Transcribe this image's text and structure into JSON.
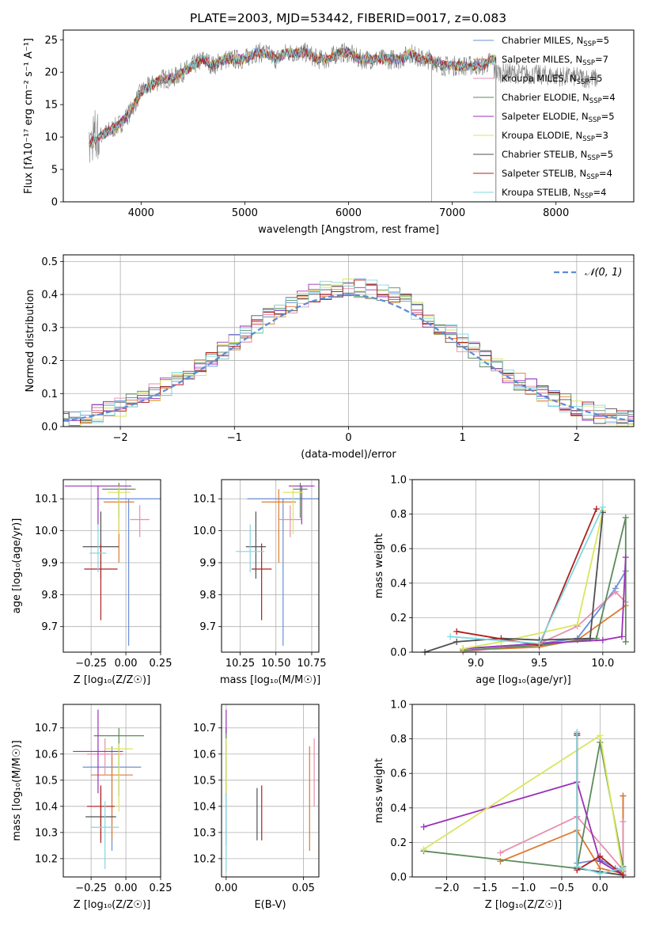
{
  "title": "PLATE=2003, MJD=53442, FIBERID=0017, z=0.083",
  "model_colors": [
    "#6a8fd9",
    "#e07a2f",
    "#e58fb0",
    "#5c8a5c",
    "#9b30b8",
    "#d9e65c",
    "#505050",
    "#b02020",
    "#80d8e0"
  ],
  "chart_data": [
    {
      "panel": "spectrum",
      "type": "line",
      "title": "PLATE=2003, MJD=53442, FIBERID=0017, z=0.083",
      "xlabel": "wavelength [Angstrom, rest frame]",
      "ylabel": "Flux [fλ10⁻¹⁷ erg cm⁻² s⁻¹ A⁻¹]",
      "xlim": [
        3250,
        8750
      ],
      "ylim": [
        0,
        26.5
      ],
      "xticks": [
        "4000",
        "5000",
        "6000",
        "7000",
        "8000"
      ],
      "yticks": [
        "0",
        "5",
        "10",
        "15",
        "20",
        "25"
      ],
      "grid": false,
      "legend": "right",
      "data_series": {
        "x": [
          3500,
          3600,
          3700,
          3800,
          3900,
          4000,
          4100,
          4200,
          4300,
          4400,
          4500,
          4600,
          4700,
          4800,
          4900,
          5000,
          5100,
          5200,
          5300,
          5400,
          5500,
          5600,
          5700,
          5800,
          5900,
          6000,
          6100,
          6200,
          6300,
          6400,
          6500,
          6600,
          6700,
          6800,
          6900,
          7000,
          7100,
          7200,
          7300,
          7400
        ],
        "y": [
          9,
          10,
          11,
          12,
          14,
          17,
          18,
          19,
          19,
          20,
          21,
          22,
          21,
          22,
          22,
          22,
          23,
          23,
          22,
          23,
          23,
          23,
          22,
          22,
          23,
          23,
          22,
          22,
          22,
          22,
          22,
          23,
          22,
          22,
          21,
          21,
          21,
          21,
          21,
          22
        ]
      },
      "model_x_end": [
        7420,
        6800,
        7420,
        7420,
        7420,
        7420,
        7420,
        7420,
        7420
      ],
      "series": [
        {
          "name": "Chabrier MILES, N_SSP=5",
          "label": "Chabrier MILES, N",
          "sub": "SSP",
          "suffix": "=5"
        },
        {
          "name": "Salpeter MILES, N_SSP=7",
          "label": "Salpeter MILES, N",
          "sub": "SSP",
          "suffix": "=7"
        },
        {
          "name": "Kroupa MILES, N_SSP=5",
          "label": "Kroupa MILES, N",
          "sub": "SSP",
          "suffix": "=5"
        },
        {
          "name": "Chabrier ELODIE, N_SSP=4",
          "label": "Chabrier ELODIE, N",
          "sub": "SSP",
          "suffix": "=4"
        },
        {
          "name": "Salpeter ELODIE, N_SSP=5",
          "label": "Salpeter ELODIE, N",
          "sub": "SSP",
          "suffix": "=5"
        },
        {
          "name": "Kroupa ELODIE, N_SSP=3",
          "label": "Kroupa ELODIE, N",
          "sub": "SSP",
          "suffix": "=3"
        },
        {
          "name": "Chabrier STELIB, N_SSP=5",
          "label": "Chabrier STELIB, N",
          "sub": "SSP",
          "suffix": "=5"
        },
        {
          "name": "Salpeter STELIB, N_SSP=4",
          "label": "Salpeter STELIB, N",
          "sub": "SSP",
          "suffix": "=4"
        },
        {
          "name": "Kroupa STELIB, N_SSP=4",
          "label": "Kroupa STELIB, N",
          "sub": "SSP",
          "suffix": "=4"
        }
      ]
    },
    {
      "panel": "residuals",
      "type": "line",
      "xlabel": "(data-model)/error",
      "ylabel": "Normed distribution",
      "xlim": [
        -2.5,
        2.5
      ],
      "ylim": [
        0,
        0.52
      ],
      "xticks": [
        -2,
        -1,
        0,
        1,
        2
      ],
      "xtick_labels": [
        "−2",
        "−1",
        "0",
        "1",
        "2"
      ],
      "yticks": [
        0.0,
        0.1,
        0.2,
        0.3,
        0.4,
        0.5
      ],
      "ytick_labels": [
        "0.0",
        "0.1",
        "0.2",
        "0.3",
        "0.4",
        "0.5"
      ],
      "grid": true,
      "legend": "top-right",
      "legend_label": "𝒩(0, 1)",
      "curve_color": "#5b8bd9",
      "bin_width": 0.1
    },
    {
      "panel": "age-vs-Z",
      "type": "scatter",
      "xlabel": "Z [log₁₀(Z/Z☉)]",
      "ylabel": "age  [log₁₀(age/yr)]",
      "xlim": [
        -0.45,
        0.25
      ],
      "ylim": [
        9.62,
        10.16
      ],
      "xticks": [
        -0.25,
        0.0,
        0.25
      ],
      "xtick_labels": [
        "−0.25",
        "0.00",
        "0.25"
      ],
      "yticks": [
        9.7,
        9.8,
        9.9,
        10.0,
        10.1
      ],
      "ytick_labels": [
        "9.7",
        "9.8",
        "9.9",
        "10.0",
        "10.1"
      ],
      "grid": true,
      "points": [
        {
          "x": 0.02,
          "y": 10.1,
          "xerr": 0.23,
          "ylo": 9.64,
          "yhi": 10.1
        },
        {
          "x": -0.05,
          "y": 10.09,
          "xerr": 0.11,
          "ylo": 9.9,
          "yhi": 10.13
        },
        {
          "x": 0.1,
          "y": 10.035,
          "xerr": 0.07,
          "ylo": 9.98,
          "yhi": 10.08
        },
        {
          "x": -0.05,
          "y": 10.13,
          "xerr": 0.12,
          "ylo": 10.04,
          "yhi": 10.15
        },
        {
          "x": -0.2,
          "y": 10.14,
          "xerr": 0.24,
          "ylo": 10.02,
          "yhi": 10.14
        },
        {
          "x": -0.05,
          "y": 10.12,
          "xerr": 0.08,
          "ylo": 9.99,
          "yhi": 10.14
        },
        {
          "x": -0.18,
          "y": 9.95,
          "xerr": 0.13,
          "ylo": 9.85,
          "yhi": 10.06
        },
        {
          "x": -0.18,
          "y": 9.88,
          "xerr": 0.12,
          "ylo": 9.72,
          "yhi": 9.96
        },
        {
          "x": -0.2,
          "y": 9.93,
          "xerr": 0.06,
          "ylo": 9.87,
          "yhi": 10.02
        }
      ]
    },
    {
      "panel": "age-vs-mass",
      "type": "scatter",
      "xlabel": "mass [log₁₀(M/M☉)]",
      "ylabel": "",
      "xlim": [
        10.12,
        10.8
      ],
      "ylim": [
        9.62,
        10.16
      ],
      "xticks": [
        10.25,
        10.5,
        10.75
      ],
      "xtick_labels": [
        "10.25",
        "10.50",
        "10.75"
      ],
      "yticks": [
        9.7,
        9.8,
        9.9,
        10.0,
        10.1
      ],
      "ytick_labels": [
        "9.7",
        "9.8",
        "9.9",
        "10.0",
        "10.1"
      ],
      "grid": true,
      "points": [
        {
          "x": 10.55,
          "y": 10.1,
          "xerr": 0.25,
          "ylo": 9.64,
          "yhi": 10.1
        },
        {
          "x": 10.52,
          "y": 10.09,
          "xerr": 0.12,
          "ylo": 9.9,
          "yhi": 10.13
        },
        {
          "x": 10.6,
          "y": 10.035,
          "xerr": 0.08,
          "ylo": 9.98,
          "yhi": 10.08
        },
        {
          "x": 10.67,
          "y": 10.13,
          "xerr": 0.05,
          "ylo": 10.04,
          "yhi": 10.15
        },
        {
          "x": 10.68,
          "y": 10.14,
          "xerr": 0.09,
          "ylo": 10.02,
          "yhi": 10.14
        },
        {
          "x": 10.62,
          "y": 10.12,
          "xerr": 0.07,
          "ylo": 9.99,
          "yhi": 10.14
        },
        {
          "x": 10.36,
          "y": 9.95,
          "xerr": 0.07,
          "ylo": 9.85,
          "yhi": 10.06
        },
        {
          "x": 10.4,
          "y": 9.88,
          "xerr": 0.07,
          "ylo": 9.72,
          "yhi": 9.96
        },
        {
          "x": 10.32,
          "y": 9.935,
          "xerr": 0.1,
          "ylo": 9.87,
          "yhi": 10.02
        }
      ]
    },
    {
      "panel": "weight-vs-age",
      "type": "line",
      "xlabel": "age  [log₁₀(age/yr)]",
      "ylabel": "mass weight",
      "xlim": [
        8.5,
        10.25
      ],
      "ylim": [
        0,
        1.0
      ],
      "xticks": [
        9.0,
        9.5,
        10.0
      ],
      "xtick_labels": [
        "9.0",
        "9.5",
        "10.0"
      ],
      "yticks": [
        0.0,
        0.2,
        0.4,
        0.6,
        0.8,
        1.0
      ],
      "ytick_labels": [
        "0.0",
        "0.2",
        "0.4",
        "0.6",
        "0.8",
        "1.0"
      ],
      "grid": true,
      "series": [
        {
          "x": [
            8.9,
            9.5,
            9.8,
            10.1,
            10.18
          ],
          "y": [
            0.02,
            0.05,
            0.08,
            0.37,
            0.47
          ]
        },
        {
          "x": [
            8.9,
            9.5,
            9.8,
            10.18
          ],
          "y": [
            0.01,
            0.03,
            0.07,
            0.27
          ]
        },
        {
          "x": [
            8.9,
            9.5,
            9.8,
            10.1,
            10.18
          ],
          "y": [
            0.0,
            0.05,
            0.15,
            0.35,
            0.29
          ]
        },
        {
          "x": [
            8.9,
            9.5,
            9.95,
            10.18,
            10.18
          ],
          "y": [
            0.01,
            0.04,
            0.08,
            0.78,
            0.06
          ]
        },
        {
          "x": [
            8.9,
            9.5,
            10.0,
            10.15,
            10.18
          ],
          "y": [
            0.02,
            0.05,
            0.07,
            0.09,
            0.55
          ]
        },
        {
          "x": [
            8.9,
            9.2,
            9.8,
            10.0
          ],
          "y": [
            0.02,
            0.06,
            0.16,
            0.82
          ]
        },
        {
          "x": [
            8.6,
            8.85,
            9.2,
            9.5,
            9.9,
            10.0
          ],
          "y": [
            0.0,
            0.06,
            0.08,
            0.07,
            0.08,
            0.81
          ]
        },
        {
          "x": [
            8.85,
            9.5,
            9.95
          ],
          "y": [
            0.12,
            0.04,
            0.83
          ]
        },
        {
          "x": [
            8.8,
            9.5,
            10.0
          ],
          "y": [
            0.09,
            0.05,
            0.84
          ]
        }
      ]
    },
    {
      "panel": "mass-vs-Z",
      "type": "scatter",
      "xlabel": "Z [log₁₀(Z/Z☉)]",
      "ylabel": "mass [log₁₀(M/M☉)]",
      "xlim": [
        -0.45,
        0.25
      ],
      "ylim": [
        10.13,
        10.79
      ],
      "xticks": [
        -0.25,
        0.0,
        0.25
      ],
      "xtick_labels": [
        "−0.25",
        "0.00",
        "0.25"
      ],
      "yticks": [
        10.2,
        10.3,
        10.4,
        10.5,
        10.6,
        10.7
      ],
      "ytick_labels": [
        "10.2",
        "10.3",
        "10.4",
        "10.5",
        "10.6",
        "10.7"
      ],
      "grid": true,
      "points": [
        {
          "x": -0.1,
          "y": 10.55,
          "xerr": 0.21,
          "ylo": 10.23,
          "yhi": 10.63
        },
        {
          "x": -0.1,
          "y": 10.52,
          "xerr": 0.15,
          "ylo": 10.27,
          "yhi": 10.6
        },
        {
          "x": -0.15,
          "y": 10.6,
          "xerr": 0.13,
          "ylo": 10.52,
          "yhi": 10.66
        },
        {
          "x": -0.05,
          "y": 10.67,
          "xerr": 0.18,
          "ylo": 10.44,
          "yhi": 10.7
        },
        {
          "x": -0.2,
          "y": 10.61,
          "xerr": 0.18,
          "ylo": 10.45,
          "yhi": 10.77
        },
        {
          "x": -0.05,
          "y": 10.62,
          "xerr": 0.1,
          "ylo": 10.38,
          "yhi": 10.64
        },
        {
          "x": -0.18,
          "y": 10.36,
          "xerr": 0.11,
          "ylo": 10.27,
          "yhi": 10.47
        },
        {
          "x": -0.18,
          "y": 10.4,
          "xerr": 0.1,
          "ylo": 10.26,
          "yhi": 10.48
        },
        {
          "x": -0.15,
          "y": 10.32,
          "xerr": 0.1,
          "ylo": 10.16,
          "yhi": 10.42
        }
      ]
    },
    {
      "panel": "mass-vs-ebv",
      "type": "scatter",
      "xlabel": "E(B-V)",
      "ylabel": "",
      "xlim": [
        -0.003,
        0.06
      ],
      "ylim": [
        10.13,
        10.79
      ],
      "xticks": [
        0.0,
        0.05
      ],
      "xtick_labels": [
        "0.00",
        "0.05"
      ],
      "yticks": [
        10.2,
        10.3,
        10.4,
        10.5,
        10.6,
        10.7
      ],
      "ytick_labels": [
        "10.2",
        "10.3",
        "10.4",
        "10.5",
        "10.6",
        "10.7"
      ],
      "grid": true,
      "points": [
        {
          "x": 0.0,
          "y": 10.55,
          "xerr": 0,
          "ylo": 10.25,
          "yhi": 10.7
        },
        {
          "x": 0.054,
          "y": 10.43,
          "xerr": 0,
          "ylo": 10.23,
          "yhi": 10.63
        },
        {
          "x": 0.057,
          "y": 10.55,
          "xerr": 0,
          "ylo": 10.4,
          "yhi": 10.66
        },
        {
          "x": 0.0,
          "y": 10.6,
          "xerr": 0,
          "ylo": 10.44,
          "yhi": 10.7
        },
        {
          "x": 0.0,
          "y": 10.72,
          "xerr": 0,
          "ylo": 10.68,
          "yhi": 10.77
        },
        {
          "x": 0.0,
          "y": 10.6,
          "xerr": 0,
          "ylo": 10.45,
          "yhi": 10.66
        },
        {
          "x": 0.02,
          "y": 10.36,
          "xerr": 0,
          "ylo": 10.27,
          "yhi": 10.47
        },
        {
          "x": 0.023,
          "y": 10.4,
          "xerr": 0,
          "ylo": 10.27,
          "yhi": 10.48
        },
        {
          "x": 0.0,
          "y": 10.35,
          "xerr": 0,
          "ylo": 10.15,
          "yhi": 10.45
        }
      ]
    },
    {
      "panel": "weight-vs-Z",
      "type": "line",
      "xlabel": "Z [log₁₀(Z/Z☉)]",
      "ylabel": "mass weight",
      "xlim": [
        -2.45,
        0.45
      ],
      "ylim": [
        0,
        1.0
      ],
      "xticks": [
        -2.0,
        -1.5,
        -1.0,
        -0.5,
        0.0
      ],
      "xtick_labels": [
        "−2.0",
        "−1.5",
        "−1.0",
        "−0.5",
        "0.0"
      ],
      "yticks": [
        0.0,
        0.2,
        0.4,
        0.6,
        0.8,
        1.0
      ],
      "ytick_labels": [
        "0.0",
        "0.2",
        "0.4",
        "0.6",
        "0.8",
        "1.0"
      ],
      "grid": true,
      "series": [
        {
          "x": [
            -0.3,
            0.0,
            0.2,
            0.3,
            0.3
          ],
          "y": [
            0.08,
            0.1,
            0.05,
            0.03,
            0.47
          ]
        },
        {
          "x": [
            -1.3,
            -0.3,
            0.0,
            0.3,
            0.3
          ],
          "y": [
            0.09,
            0.27,
            0.05,
            0.02,
            0.47
          ]
        },
        {
          "x": [
            -1.3,
            -0.3,
            0.3,
            0.3
          ],
          "y": [
            0.14,
            0.35,
            0.04,
            0.32
          ]
        },
        {
          "x": [
            -2.3,
            -0.3,
            0.0,
            0.3
          ],
          "y": [
            0.15,
            0.05,
            0.78,
            0.06
          ]
        },
        {
          "x": [
            -2.3,
            -0.3,
            0.0,
            0.3
          ],
          "y": [
            0.29,
            0.55,
            0.09,
            0.01
          ]
        },
        {
          "x": [
            -2.3,
            0.0,
            0.3
          ],
          "y": [
            0.16,
            0.82,
            0.02
          ]
        },
        {
          "x": [
            -0.3,
            -0.3,
            0.0,
            0.3
          ],
          "y": [
            0.82,
            0.05,
            0.03,
            0.01
          ]
        },
        {
          "x": [
            -0.3,
            -0.3,
            0.0,
            0.3
          ],
          "y": [
            0.83,
            0.04,
            0.12,
            0.01
          ]
        },
        {
          "x": [
            -0.3,
            -0.3,
            0.0,
            0.3
          ],
          "y": [
            0.84,
            0.06,
            0.02,
            0.05
          ]
        }
      ]
    }
  ]
}
